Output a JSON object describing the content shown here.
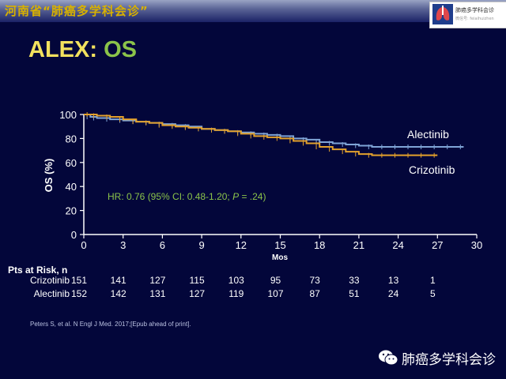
{
  "header": {
    "title": "河南省“肺癌多学科会诊”"
  },
  "logo": {
    "name": "肺癌多学科会诊",
    "sub": "微信号: feiaihuizhen"
  },
  "slide": {
    "title_part1": "ALEX: ",
    "title_part2": "OS"
  },
  "colors": {
    "alectinib": "#7fa4d6",
    "crizotinib": "#e3a12c",
    "hr_text": "#8bc34a",
    "axis": "#ffffff"
  },
  "chart_data": {
    "type": "line",
    "title": "",
    "xlabel": "Mos",
    "ylabel": "OS (%)",
    "xlim": [
      0,
      30
    ],
    "ylim": [
      0,
      100
    ],
    "x_ticks": [
      0,
      3,
      6,
      9,
      12,
      15,
      18,
      21,
      24,
      27,
      30
    ],
    "y_ticks": [
      0,
      20,
      40,
      60,
      80,
      100
    ],
    "grid": false,
    "annotation": "HR: 0.76 (95% CI: 0.48-1.20; P = .24)",
    "series": [
      {
        "name": "Alectinib",
        "x": [
          0,
          0.5,
          1,
          2,
          3,
          4,
          5,
          6,
          7,
          8,
          9,
          10,
          11,
          12,
          13,
          14,
          15,
          16,
          17,
          18,
          19,
          20,
          21,
          22,
          23,
          24,
          25,
          26,
          27,
          28,
          29
        ],
        "y": [
          100,
          98,
          97,
          96,
          95,
          94,
          93,
          92,
          91,
          90,
          88,
          87,
          86,
          85,
          84,
          83,
          82,
          80,
          79,
          77,
          76,
          75,
          74,
          73,
          73,
          73,
          73,
          73,
          73,
          73,
          73
        ]
      },
      {
        "name": "Crizotinib",
        "x": [
          0,
          0.5,
          1,
          2,
          3,
          4,
          5,
          6,
          7,
          8,
          9,
          10,
          11,
          12,
          13,
          14,
          15,
          16,
          17,
          18,
          19,
          20,
          21,
          22,
          23,
          24,
          25,
          26,
          27
        ],
        "y": [
          100,
          100,
          99,
          98,
          96,
          94,
          93,
          91,
          90,
          89,
          88,
          87,
          86,
          84,
          82,
          81,
          80,
          78,
          76,
          73,
          71,
          69,
          67,
          66,
          66,
          66,
          66,
          66,
          66
        ]
      }
    ]
  },
  "risk_table": {
    "heading": "Pts at Risk, n",
    "times": [
      0,
      3,
      6,
      9,
      12,
      15,
      18,
      21,
      24,
      27
    ],
    "rows": [
      {
        "label": "Crizotinib",
        "values": [
          "151",
          "141",
          "127",
          "115",
          "103",
          "95",
          "73",
          "33",
          "13",
          "1"
        ]
      },
      {
        "label": "Alectinib",
        "values": [
          "152",
          "142",
          "131",
          "127",
          "119",
          "107",
          "87",
          "51",
          "24",
          "5"
        ]
      }
    ]
  },
  "citation": "Peters S, et al. N Engl J Med. 2017;[Epub ahead of print].",
  "footer": {
    "wechat_name": "肺癌多学科会诊",
    "icon": "wechat-icon"
  }
}
